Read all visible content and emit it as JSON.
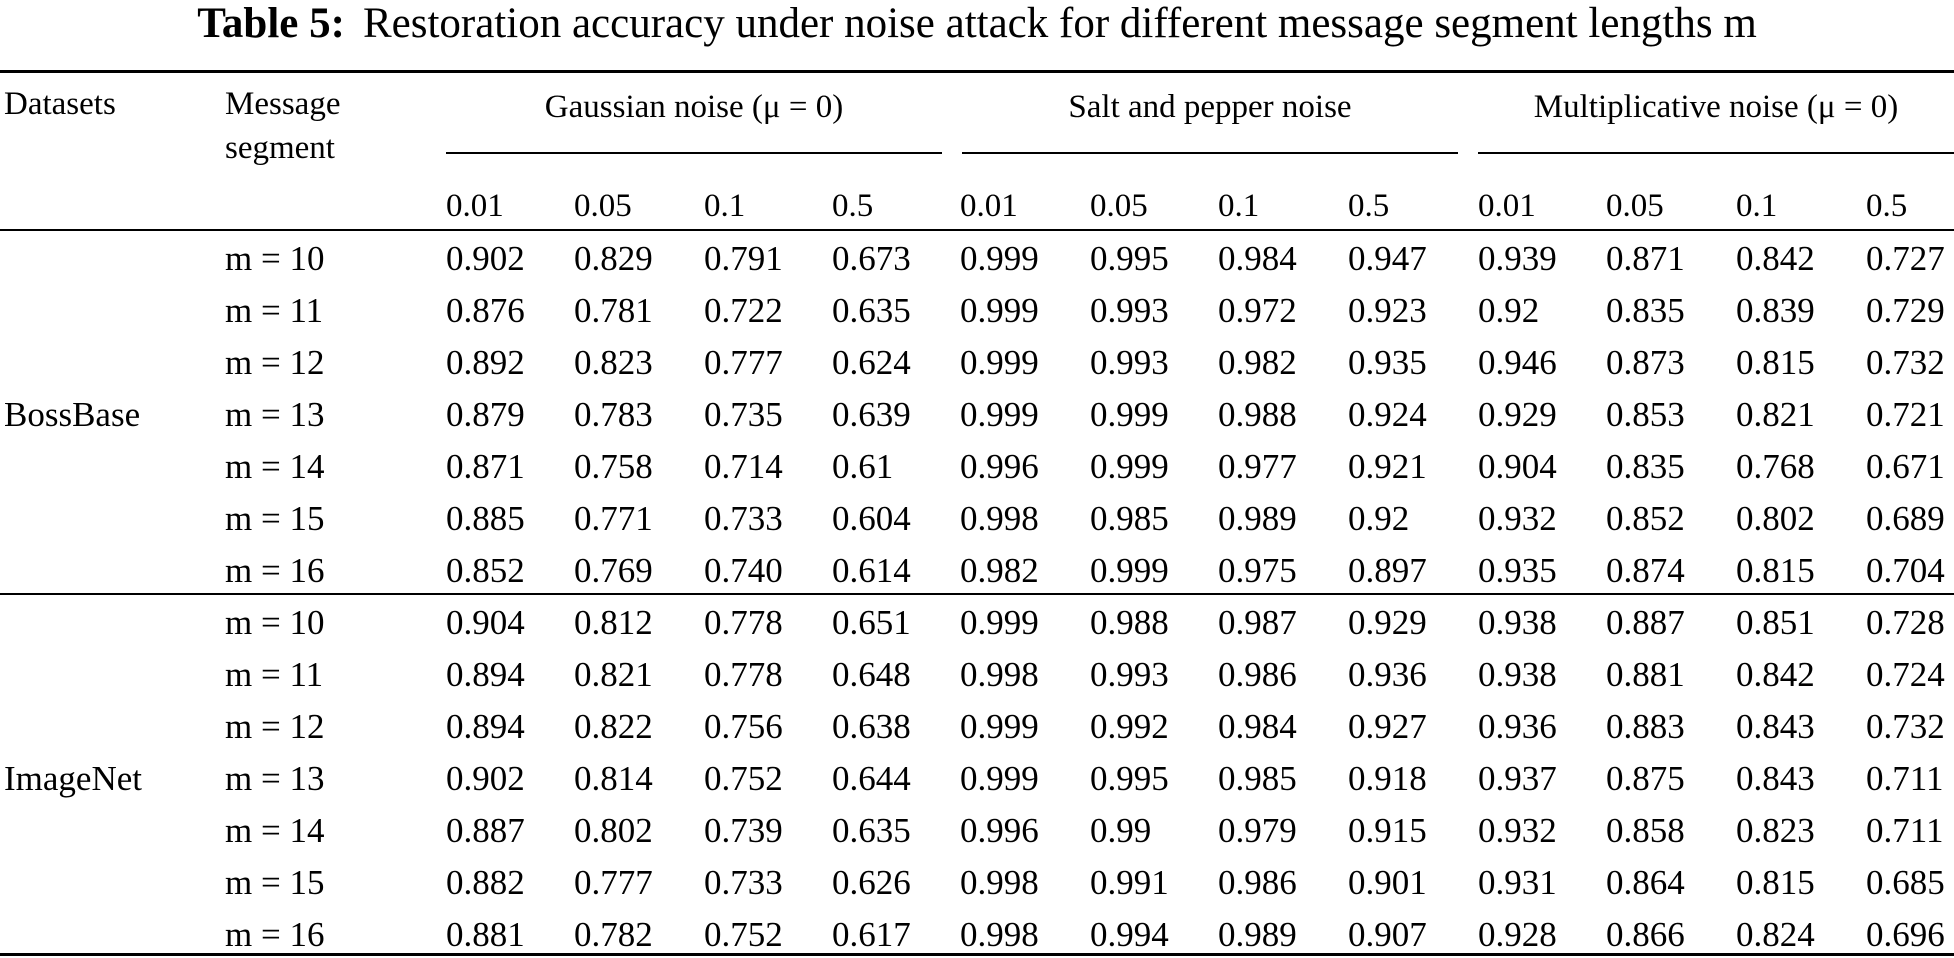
{
  "caption": {
    "label": "Table 5:",
    "text": "Restoration accuracy under noise attack for different message segment lengths m"
  },
  "table": {
    "col_datasets": "Datasets",
    "col_segment_line1": "Message",
    "col_segment_line2": "segment",
    "groups": [
      {
        "title": "Gaussian noise (μ = 0)",
        "levels": [
          "0.01",
          "0.05",
          "0.1",
          "0.5"
        ]
      },
      {
        "title": "Salt and pepper noise",
        "levels": [
          "0.01",
          "0.05",
          "0.1",
          "0.5"
        ]
      },
      {
        "title": "Multiplicative noise (μ = 0)",
        "levels": [
          "0.01",
          "0.05",
          "0.1",
          "0.5"
        ]
      }
    ],
    "datasets": [
      {
        "name": "BossBase",
        "rows": [
          {
            "segment": "m = 10",
            "values": [
              "0.902",
              "0.829",
              "0.791",
              "0.673",
              "0.999",
              "0.995",
              "0.984",
              "0.947",
              "0.939",
              "0.871",
              "0.842",
              "0.727"
            ]
          },
          {
            "segment": "m = 11",
            "values": [
              "0.876",
              "0.781",
              "0.722",
              "0.635",
              "0.999",
              "0.993",
              "0.972",
              "0.923",
              "0.92",
              "0.835",
              "0.839",
              "0.729"
            ]
          },
          {
            "segment": "m = 12",
            "values": [
              "0.892",
              "0.823",
              "0.777",
              "0.624",
              "0.999",
              "0.993",
              "0.982",
              "0.935",
              "0.946",
              "0.873",
              "0.815",
              "0.732"
            ]
          },
          {
            "segment": "m = 13",
            "values": [
              "0.879",
              "0.783",
              "0.735",
              "0.639",
              "0.999",
              "0.999",
              "0.988",
              "0.924",
              "0.929",
              "0.853",
              "0.821",
              "0.721"
            ]
          },
          {
            "segment": "m = 14",
            "values": [
              "0.871",
              "0.758",
              "0.714",
              "0.61",
              "0.996",
              "0.999",
              "0.977",
              "0.921",
              "0.904",
              "0.835",
              "0.768",
              "0.671"
            ]
          },
          {
            "segment": "m = 15",
            "values": [
              "0.885",
              "0.771",
              "0.733",
              "0.604",
              "0.998",
              "0.985",
              "0.989",
              "0.92",
              "0.932",
              "0.852",
              "0.802",
              "0.689"
            ]
          },
          {
            "segment": "m = 16",
            "values": [
              "0.852",
              "0.769",
              "0.740",
              "0.614",
              "0.982",
              "0.999",
              "0.975",
              "0.897",
              "0.935",
              "0.874",
              "0.815",
              "0.704"
            ]
          }
        ]
      },
      {
        "name": "ImageNet",
        "rows": [
          {
            "segment": "m = 10",
            "values": [
              "0.904",
              "0.812",
              "0.778",
              "0.651",
              "0.999",
              "0.988",
              "0.987",
              "0.929",
              "0.938",
              "0.887",
              "0.851",
              "0.728"
            ]
          },
          {
            "segment": "m = 11",
            "values": [
              "0.894",
              "0.821",
              "0.778",
              "0.648",
              "0.998",
              "0.993",
              "0.986",
              "0.936",
              "0.938",
              "0.881",
              "0.842",
              "0.724"
            ]
          },
          {
            "segment": "m = 12",
            "values": [
              "0.894",
              "0.822",
              "0.756",
              "0.638",
              "0.999",
              "0.992",
              "0.984",
              "0.927",
              "0.936",
              "0.883",
              "0.843",
              "0.732"
            ]
          },
          {
            "segment": "m = 13",
            "values": [
              "0.902",
              "0.814",
              "0.752",
              "0.644",
              "0.999",
              "0.995",
              "0.985",
              "0.918",
              "0.937",
              "0.875",
              "0.843",
              "0.711"
            ]
          },
          {
            "segment": "m = 14",
            "values": [
              "0.887",
              "0.802",
              "0.739",
              "0.635",
              "0.996",
              "0.99",
              "0.979",
              "0.915",
              "0.932",
              "0.858",
              "0.823",
              "0.711"
            ]
          },
          {
            "segment": "m = 15",
            "values": [
              "0.882",
              "0.777",
              "0.733",
              "0.626",
              "0.998",
              "0.991",
              "0.986",
              "0.901",
              "0.931",
              "0.864",
              "0.815",
              "0.685"
            ]
          },
          {
            "segment": "m = 16",
            "values": [
              "0.881",
              "0.782",
              "0.752",
              "0.617",
              "0.998",
              "0.994",
              "0.989",
              "0.907",
              "0.928",
              "0.866",
              "0.824",
              "0.696"
            ]
          }
        ]
      }
    ]
  }
}
